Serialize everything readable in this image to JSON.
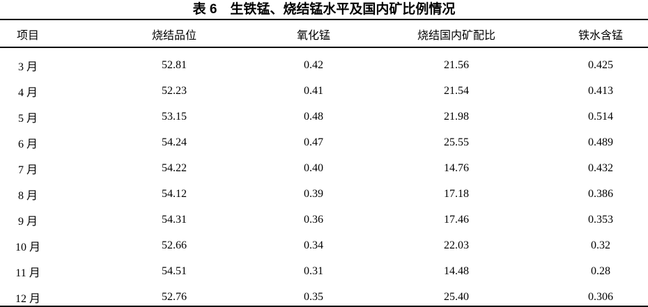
{
  "title": "表 6　生铁锰、烧结锰水平及国内矿比例情况",
  "table": {
    "columns": [
      "项目",
      "烧结品位",
      "氧化锰",
      "烧结国内矿配比",
      "铁水含锰"
    ],
    "rows": [
      {
        "label": "3 月",
        "values": [
          "52.81",
          "0.42",
          "21.56",
          "0.425"
        ]
      },
      {
        "label": "4 月",
        "values": [
          "52.23",
          "0.41",
          "21.54",
          "0.413"
        ]
      },
      {
        "label": "5 月",
        "values": [
          "53.15",
          "0.48",
          "21.98",
          "0.514"
        ]
      },
      {
        "label": "6 月",
        "values": [
          "54.24",
          "0.47",
          "25.55",
          "0.489"
        ]
      },
      {
        "label": "7 月",
        "values": [
          "54.22",
          "0.40",
          "14.76",
          "0.432"
        ]
      },
      {
        "label": "8 月",
        "values": [
          "54.12",
          "0.39",
          "17.18",
          "0.386"
        ]
      },
      {
        "label": "9 月",
        "values": [
          "54.31",
          "0.36",
          "17.46",
          "0.353"
        ]
      },
      {
        "label": "10 月",
        "values": [
          "52.66",
          "0.34",
          "22.03",
          "0.32"
        ]
      },
      {
        "label": "11 月",
        "values": [
          "54.51",
          "0.31",
          "14.48",
          "0.28"
        ]
      },
      {
        "label": "12 月",
        "values": [
          "52.76",
          "0.35",
          "25.40",
          "0.306"
        ]
      }
    ]
  },
  "colors": {
    "text": "#000000",
    "background": "#ffffff",
    "rule": "#000000"
  }
}
